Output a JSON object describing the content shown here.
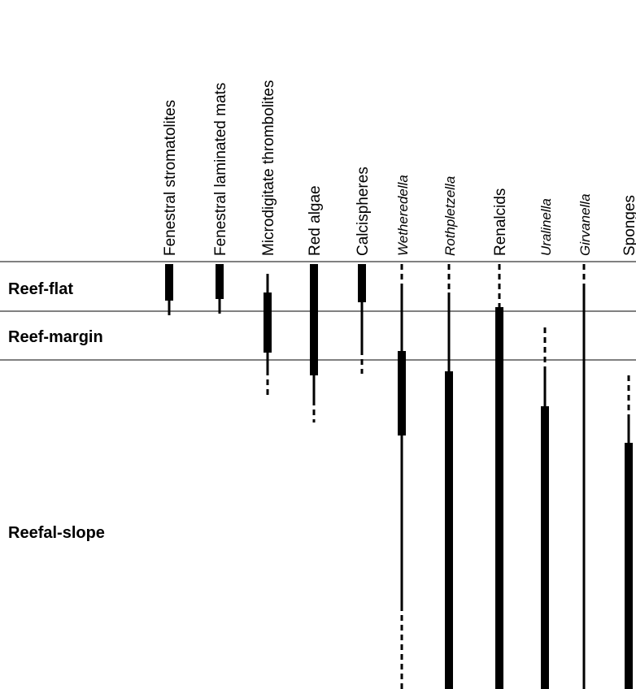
{
  "zones": [
    "Reef-flat",
    "Reef-margin",
    "Reefal-slope"
  ],
  "columns": [
    "Fenestral stromatolites",
    "Fenestral laminated mats",
    "Microdigitate thrombolites",
    "Red algae",
    "Calcispheres",
    "Wetheredella",
    "Rothpletzella",
    "Renalcids",
    "Uralinella",
    "Girvanella",
    "Sponges"
  ]
}
